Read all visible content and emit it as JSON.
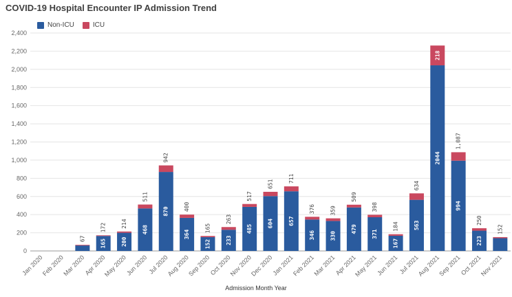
{
  "chart_data": {
    "type": "bar",
    "stacked": true,
    "title": "COVID-19 Hospital Encounter IP Admission Trend",
    "xlabel": "Admission Month Year",
    "ylabel": "",
    "ylim": [
      0,
      2400
    ],
    "yticks": [
      0,
      200,
      400,
      600,
      800,
      1000,
      1200,
      1400,
      1600,
      1800,
      2000,
      2200,
      2400
    ],
    "ytick_labels": [
      "0",
      "200",
      "400",
      "600",
      "800",
      "1,000",
      "1,200",
      "1,400",
      "1,600",
      "1,800",
      "2,000",
      "2,200",
      "2,400"
    ],
    "grid": true,
    "legend_position": "top-left",
    "categories": [
      "Jan 2020",
      "Feb 2020",
      "Mar 2020",
      "Apr 2020",
      "May 2020",
      "Jun 2020",
      "Jul 2020",
      "Aug 2020",
      "Sep 2020",
      "Oct 2020",
      "Nov 2020",
      "Dec 2020",
      "Jan 2021",
      "Feb 2021",
      "Mar 2021",
      "Apr 2021",
      "May 2021",
      "Jun 2021",
      "Jul 2021",
      "Aug 2021",
      "Sep 2021",
      "Oct 2021",
      "Nov 2021"
    ],
    "series": [
      {
        "name": "Non-ICU",
        "color": "#2a5b9e",
        "values": [
          0,
          0,
          60,
          165,
          200,
          468,
          870,
          364,
          152,
          233,
          485,
          604,
          657,
          346,
          330,
          479,
          371,
          167,
          563,
          2044,
          994,
          223,
          140
        ]
      },
      {
        "name": "ICU",
        "color": "#c9485f",
        "values": [
          0,
          0,
          7,
          7,
          14,
          43,
          72,
          36,
          13,
          30,
          32,
          47,
          54,
          30,
          29,
          30,
          27,
          17,
          71,
          218,
          93,
          27,
          12
        ]
      }
    ],
    "totals": [
      0,
      0,
      67,
      172,
      214,
      511,
      942,
      400,
      165,
      263,
      517,
      651,
      711,
      376,
      359,
      509,
      398,
      184,
      634,
      2262,
      1087,
      250,
      152
    ],
    "inner_labels": [
      "",
      "",
      "",
      "165",
      "200",
      "468",
      "870",
      "364",
      "152",
      "233",
      "485",
      "604",
      "657",
      "346",
      "330",
      "479",
      "371",
      "167",
      "563",
      "2044",
      "994",
      "223",
      ""
    ],
    "icu_inner_labels": [
      "",
      "",
      "",
      "",
      "",
      "",
      "",
      "",
      "",
      "",
      "",
      "",
      "",
      "",
      "",
      "",
      "",
      "",
      "",
      "218",
      "",
      "",
      ""
    ],
    "top_labels": [
      "",
      "",
      "67",
      "172",
      "214",
      "511",
      "942",
      "400",
      "165",
      "263",
      "517",
      "651",
      "711",
      "376",
      "359",
      "509",
      "398",
      "184",
      "634",
      "",
      "1,087",
      "250",
      "152"
    ]
  }
}
